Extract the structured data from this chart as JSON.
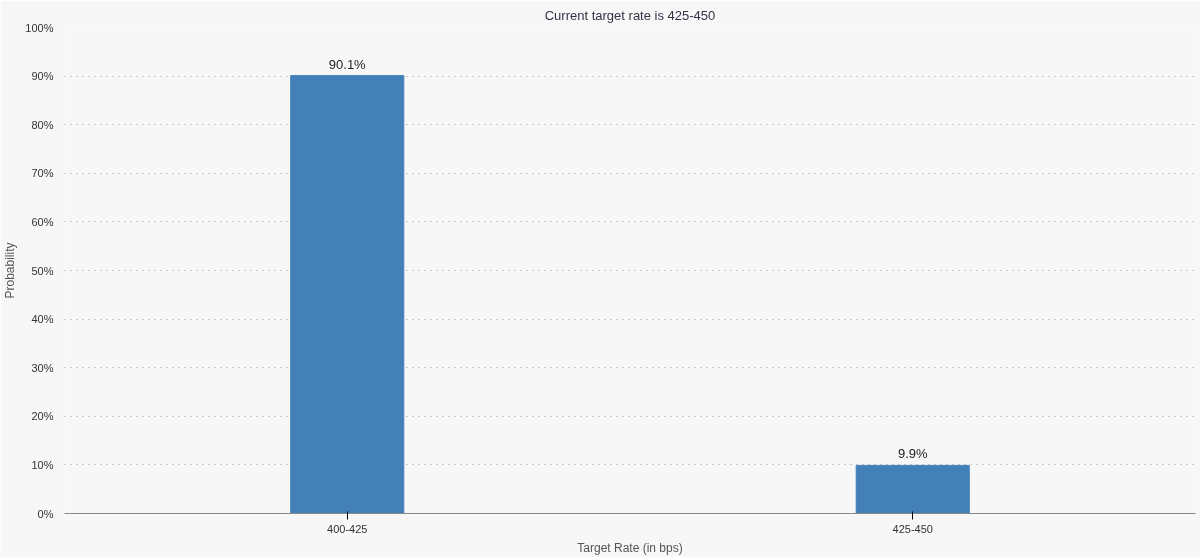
{
  "chart_data": {
    "type": "bar",
    "title": "Current target rate is 425-450",
    "xlabel": "Target Rate (in bps)",
    "ylabel": "Probability",
    "categories": [
      "400-425",
      "425-450"
    ],
    "values": [
      90.1,
      9.9
    ],
    "color": "#4380b8",
    "value_labels": [
      "90.1%",
      "9.9%"
    ],
    "ylim": [
      0,
      100
    ],
    "yticks": [
      {
        "value": 0,
        "label": "0%"
      },
      {
        "value": 10,
        "label": "10%"
      },
      {
        "value": 20,
        "label": "20%"
      },
      {
        "value": 30,
        "label": "30%"
      },
      {
        "value": 40,
        "label": "40%"
      },
      {
        "value": 50,
        "label": "50%"
      },
      {
        "value": 60,
        "label": "60%"
      },
      {
        "value": 70,
        "label": "70%"
      },
      {
        "value": 80,
        "label": "80%"
      },
      {
        "value": 90,
        "label": "90%"
      },
      {
        "value": 100,
        "label": "100%"
      }
    ],
    "grid": "y"
  }
}
